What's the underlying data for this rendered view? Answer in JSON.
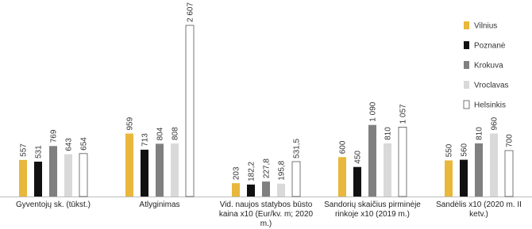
{
  "chart_data": {
    "type": "bar",
    "categories": [
      "Gyventojų sk. (tūkst.)",
      "Atlyginimas",
      "Vid. naujos statybos būsto kaina x10 (Eur/kv. m; 2020 m.)",
      "Sandorių skaičius pirminėje rinkoje x10 (2019 m.)",
      "Sandėlis x10 (2020 m. II ketv.)"
    ],
    "series": [
      {
        "name": "Vilnius",
        "color": "#e8b73b",
        "values": [
          557,
          959,
          203,
          600,
          550
        ],
        "value_labels": [
          "557",
          "959",
          "203",
          "600",
          "550"
        ]
      },
      {
        "name": "Poznanė",
        "color": "#111111",
        "values": [
          531,
          713,
          182.2,
          450,
          560
        ],
        "value_labels": [
          "531",
          "713",
          "182,2",
          "450",
          "560"
        ]
      },
      {
        "name": "Krokuva",
        "color": "#808080",
        "values": [
          769,
          804,
          227.8,
          1090,
          810
        ],
        "value_labels": [
          "769",
          "804",
          "227,8",
          "1 090",
          "810"
        ]
      },
      {
        "name": "Vroclavas",
        "color": "#d9d9d9",
        "values": [
          643,
          808,
          195.8,
          810,
          960
        ],
        "value_labels": [
          "643",
          "808",
          "195,8",
          "810",
          "960"
        ]
      },
      {
        "name": "Helsinkis",
        "color": "#ffffff",
        "values": [
          654,
          2607,
          531.5,
          1057,
          700
        ],
        "value_labels": [
          "654",
          "2 607",
          "531,5",
          "1 057",
          "700"
        ]
      }
    ],
    "legend": "top-right"
  }
}
